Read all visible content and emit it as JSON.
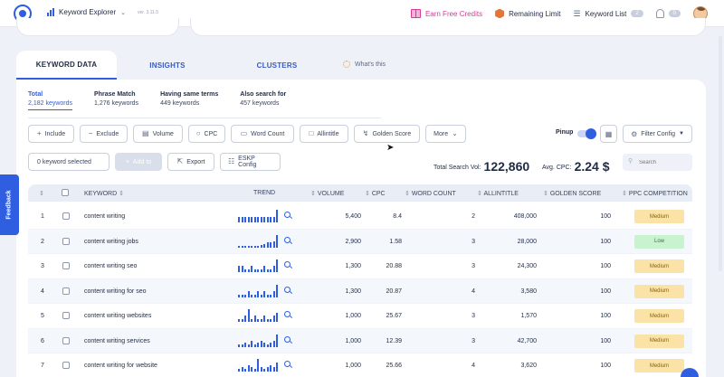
{
  "topbar": {
    "app_name": "Keyword Explorer",
    "version": "ver. 3.11.5",
    "earn_credits": "Earn Free Credits",
    "remaining_limit": "Remaining Limit",
    "keyword_list": "Keyword List",
    "keyword_list_count": "2",
    "notification_count": "0"
  },
  "tabs": [
    {
      "label": "KEYWORD DATA",
      "active": true
    },
    {
      "label": "INSIGHTS"
    },
    {
      "label": "CLUSTERS"
    }
  ],
  "whats_this": "What's this",
  "stats": [
    {
      "label": "Total",
      "value": "2,182 keywords"
    },
    {
      "label": "Phrase Match",
      "value": "1,276 keywords"
    },
    {
      "label": "Having same terms",
      "value": "449 keywords"
    },
    {
      "label": "Also search for",
      "value": "457 keywords"
    }
  ],
  "filters": {
    "include": "Include",
    "exclude": "Exclude",
    "volume": "Volume",
    "cpc": "CPC",
    "word_count": "Word Count",
    "allintitle": "Allintitle",
    "golden_score": "Golden Score",
    "more": "More",
    "pinup": "Pinup",
    "filter_config": "Filter Config"
  },
  "actions": {
    "selected": "0 keyword selected",
    "add_to": "Add to",
    "export": "Export",
    "eskp_config": "ESKP Config",
    "total_search_vol_label": "Total Search Vol:",
    "total_search_vol": "122,860",
    "avg_cpc_label": "Avg. CPC:",
    "avg_cpc": "2.24 $",
    "search_placeholder": "Search"
  },
  "table": {
    "headers": {
      "keyword": "KEYWORD",
      "trend": "TREND",
      "volume": "VOLUME",
      "cpc": "CPC",
      "word_count": "WORD COUNT",
      "allintitle": "ALLINTITLE",
      "golden_score": "GOLDEN SCORE",
      "ppc_competition": "PPC COMPETITION"
    },
    "rows": [
      {
        "n": "1",
        "keyword": "content writing",
        "volume": "5,400",
        "cpc": "8.4",
        "words": "2",
        "allintitle": "408,000",
        "golden": "100",
        "ppc": "Medium"
      },
      {
        "n": "2",
        "keyword": "content writing jobs",
        "volume": "2,900",
        "cpc": "1.58",
        "words": "3",
        "allintitle": "28,000",
        "golden": "100",
        "ppc": "Low"
      },
      {
        "n": "3",
        "keyword": "content writing seo",
        "volume": "1,300",
        "cpc": "20.88",
        "words": "3",
        "allintitle": "24,300",
        "golden": "100",
        "ppc": "Medium"
      },
      {
        "n": "4",
        "keyword": "content writing for seo",
        "volume": "1,300",
        "cpc": "20.87",
        "words": "4",
        "allintitle": "3,580",
        "golden": "100",
        "ppc": "Medium"
      },
      {
        "n": "5",
        "keyword": "content writing websites",
        "volume": "1,000",
        "cpc": "25.67",
        "words": "3",
        "allintitle": "1,570",
        "golden": "100",
        "ppc": "Medium"
      },
      {
        "n": "6",
        "keyword": "content writing services",
        "volume": "1,000",
        "cpc": "12.39",
        "words": "3",
        "allintitle": "42,700",
        "golden": "100",
        "ppc": "Medium"
      },
      {
        "n": "7",
        "keyword": "content writing for website",
        "volume": "1,000",
        "cpc": "25.66",
        "words": "4",
        "allintitle": "3,620",
        "golden": "100",
        "ppc": "Medium"
      }
    ]
  },
  "feedback": "Feedback",
  "colors": {
    "accent": "#2f5fe0",
    "medium_bg": "#fbe2a6",
    "medium_fg": "#8a6410",
    "low_bg": "#c9f2cf",
    "low_fg": "#2f7a3d"
  }
}
